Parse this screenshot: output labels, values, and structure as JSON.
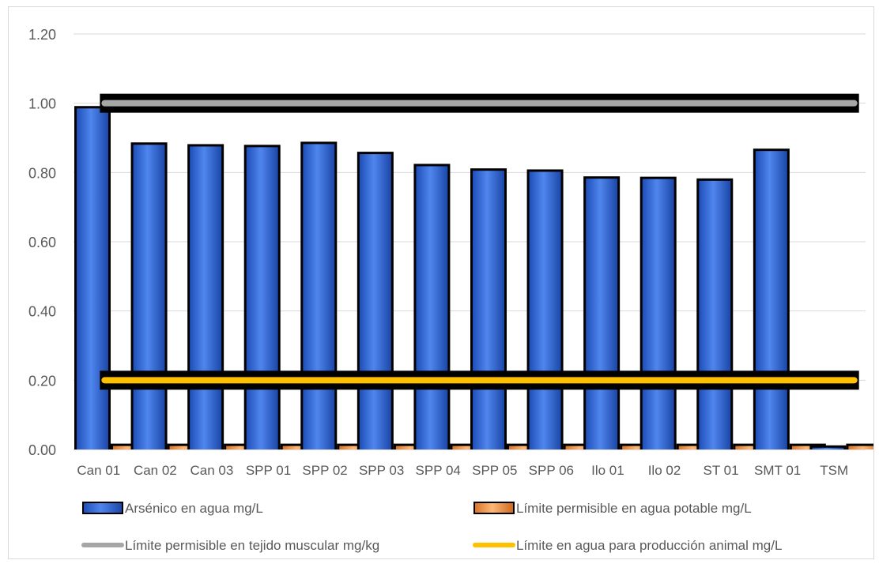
{
  "chart_data": {
    "type": "bar",
    "title": "",
    "xlabel": "",
    "ylabel": "",
    "ylim": [
      0,
      1.2
    ],
    "yticks": [
      "0.00",
      "0.20",
      "0.40",
      "0.60",
      "0.80",
      "1.00",
      "1.20"
    ],
    "grid": true,
    "legend_position": "bottom",
    "categories": [
      "Can 01",
      "Can 02",
      "Can 03",
      "SPP 01",
      "SPP 02",
      "SPP 03",
      "SPP 04",
      "SPP 05",
      "SPP 06",
      "Ilo 01",
      "Ilo 02",
      "ST 01",
      "SMT 01",
      "TSM"
    ],
    "series": [
      {
        "name": "Arsénico en agua mg/L",
        "kind": "bar",
        "color": "#3a6fd8",
        "values": [
          0.985,
          0.88,
          0.875,
          0.873,
          0.882,
          0.853,
          0.818,
          0.805,
          0.802,
          0.782,
          0.781,
          0.776,
          0.862,
          0.005
        ]
      },
      {
        "name": "Límite permisible en agua potable mg/L",
        "kind": "bar",
        "color": "#f4a460",
        "values": [
          0.01,
          0.01,
          0.01,
          0.01,
          0.01,
          0.01,
          0.01,
          0.01,
          0.01,
          0.01,
          0.01,
          0.01,
          0.01,
          0.01
        ]
      },
      {
        "name": "Límite permisible en tejido muscular mg/kg",
        "kind": "line",
        "color": "#a6a6a6",
        "value": 1.0
      },
      {
        "name": "Límite en agua para producción animal mg/L",
        "kind": "line",
        "color": "#ffc000",
        "value": 0.2
      }
    ]
  }
}
